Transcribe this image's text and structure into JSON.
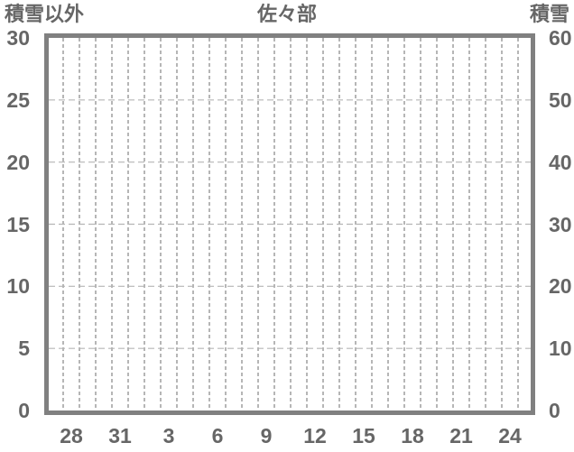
{
  "chart": {
    "title": "佐々部",
    "left_axis_title": "積雪以外",
    "right_axis_title": "積雪",
    "left_ticks": [
      "30",
      "25",
      "20",
      "15",
      "10",
      "5",
      "0"
    ],
    "right_ticks": [
      "60",
      "50",
      "40",
      "30",
      "20",
      "10",
      "0"
    ],
    "x_ticks": [
      "28",
      "31",
      "3",
      "6",
      "9",
      "12",
      "15",
      "18",
      "21",
      "24"
    ]
  },
  "colors": {
    "text": "#666666",
    "frame_border": "#808080",
    "grid_vertical": "#9e9e9e",
    "grid_horizontal": "#b5b5b5",
    "background": "#ffffff"
  },
  "chart_data": {
    "type": "line",
    "title": "佐々部",
    "series": [],
    "note": "plot area is empty - no data series drawn",
    "x_axis": {
      "tick_labels": [
        "28",
        "31",
        "3",
        "6",
        "9",
        "12",
        "15",
        "18",
        "21",
        "24"
      ],
      "tick_interval_days": 3,
      "gridline_interval_days": 1,
      "total_day_slots": 30
    },
    "left_axis": {
      "label": "積雪以外",
      "range": [
        0,
        30
      ],
      "tick_step": 5,
      "ticks": [
        0,
        5,
        10,
        15,
        20,
        25,
        30
      ]
    },
    "right_axis": {
      "label": "積雪",
      "range": [
        0,
        60
      ],
      "tick_step": 10,
      "ticks": [
        0,
        10,
        20,
        30,
        40,
        50,
        60
      ]
    },
    "grid": {
      "style": "dashed",
      "vertical_lines": 29,
      "horizontal_lines": 5
    },
    "legend_position": "none"
  }
}
